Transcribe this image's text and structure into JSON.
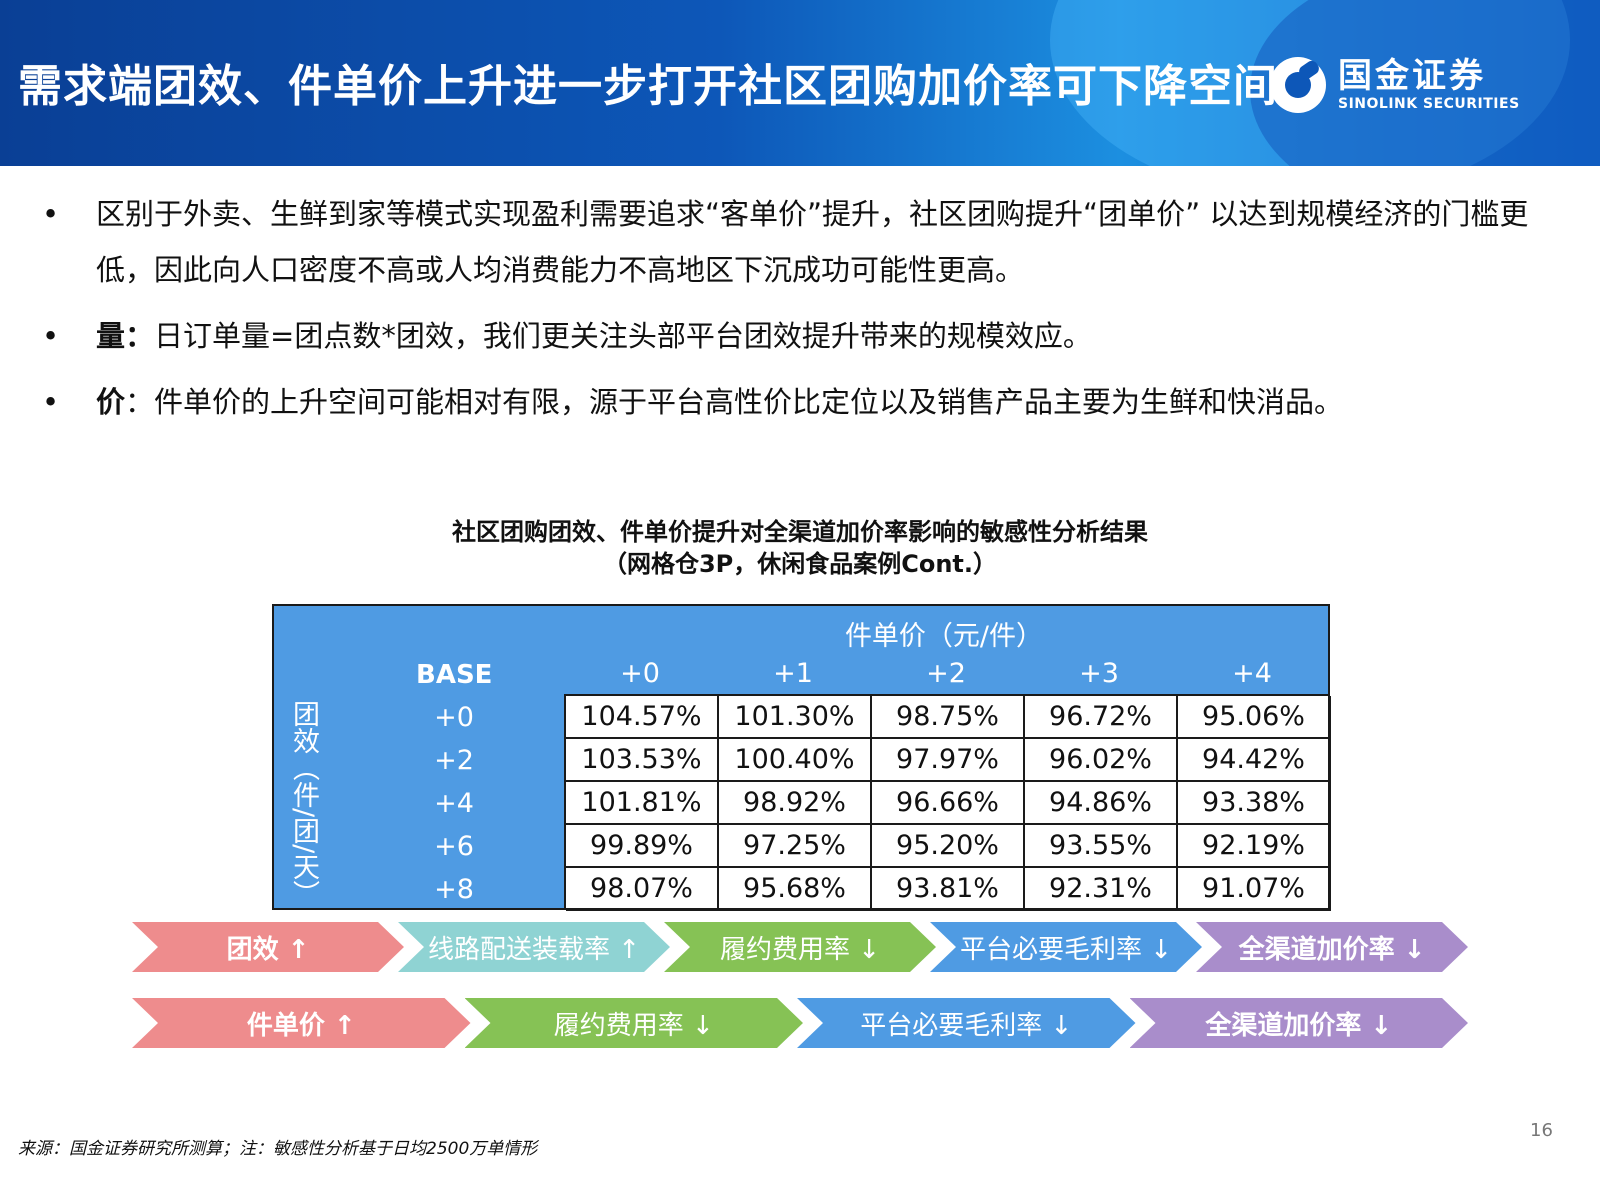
{
  "header": {
    "title": "需求端团效、件单价上升进一步打开社区团购加价率可下降空间",
    "logo_cn": "国金证券",
    "logo_en": "SINOLINK SECURITIES"
  },
  "bullets": [
    {
      "bold": "",
      "text": "区别于外卖、生鲜到家等模式实现盈利需要追求“客单价”提升，社区团购提升“团单价” 以达到规模经济的门槛更低，因此向人口密度不高或人均消费能力不高地区下沉成功可能性更高。"
    },
    {
      "bold": "量：",
      "text": "日订单量=团点数*团效，我们更关注头部平台团效提升带来的规模效应。"
    },
    {
      "bold": "价",
      "text": "：件单价的上升空间可能相对有限，源于平台高性价比定位以及销售产品主要为生鲜和快消品。"
    }
  ],
  "bullet_marker": "•",
  "chart_data": {
    "type": "table",
    "title": "社区团购团效、件单价提升对全渠道加价率影响的敏感性分析结果",
    "subtitle": "（网格仓3P，休闲食品案例Cont.）",
    "column_group_label": "件单价（元/件）",
    "row_group_label": "团效（件/团/天）",
    "corner_label": "BASE",
    "columns": [
      "+0",
      "+1",
      "+2",
      "+3",
      "+4"
    ],
    "rows": [
      "+0",
      "+2",
      "+4",
      "+6",
      "+8"
    ],
    "values": [
      [
        "104.57%",
        "101.30%",
        "98.75%",
        "96.72%",
        "95.06%"
      ],
      [
        "103.53%",
        "100.40%",
        "97.97%",
        "96.02%",
        "94.42%"
      ],
      [
        "101.81%",
        "98.92%",
        "96.66%",
        "94.86%",
        "93.38%"
      ],
      [
        "99.89%",
        "97.25%",
        "95.20%",
        "93.55%",
        "92.19%"
      ],
      [
        "98.07%",
        "95.68%",
        "93.81%",
        "92.31%",
        "91.07%"
      ]
    ]
  },
  "flows": [
    {
      "steps": [
        {
          "label": "团效 ↑",
          "color": "#ee8c8d",
          "bold": true
        },
        {
          "label": "线路配送装载率 ↑",
          "color": "#8fd3d3",
          "bold": false
        },
        {
          "label": "履约费用率 ↓",
          "color": "#86c255",
          "bold": false
        },
        {
          "label": "平台必要毛利率 ↓",
          "color": "#4f9be3",
          "bold": false
        },
        {
          "label": "全渠道加价率 ↓",
          "color": "#a98dcb",
          "bold": true
        }
      ]
    },
    {
      "steps": [
        {
          "label": "件单价 ↑",
          "color": "#ee8c8d",
          "bold": true
        },
        {
          "label": "履约费用率 ↓",
          "color": "#86c255",
          "bold": false
        },
        {
          "label": "平台必要毛利率 ↓",
          "color": "#4f9be3",
          "bold": false
        },
        {
          "label": "全渠道加价率 ↓",
          "color": "#a98dcb",
          "bold": true
        }
      ]
    }
  ],
  "footer": "来源：国金证券研究所测算；注：敏感性分析基于日均2500万单情形",
  "page_number": "16"
}
